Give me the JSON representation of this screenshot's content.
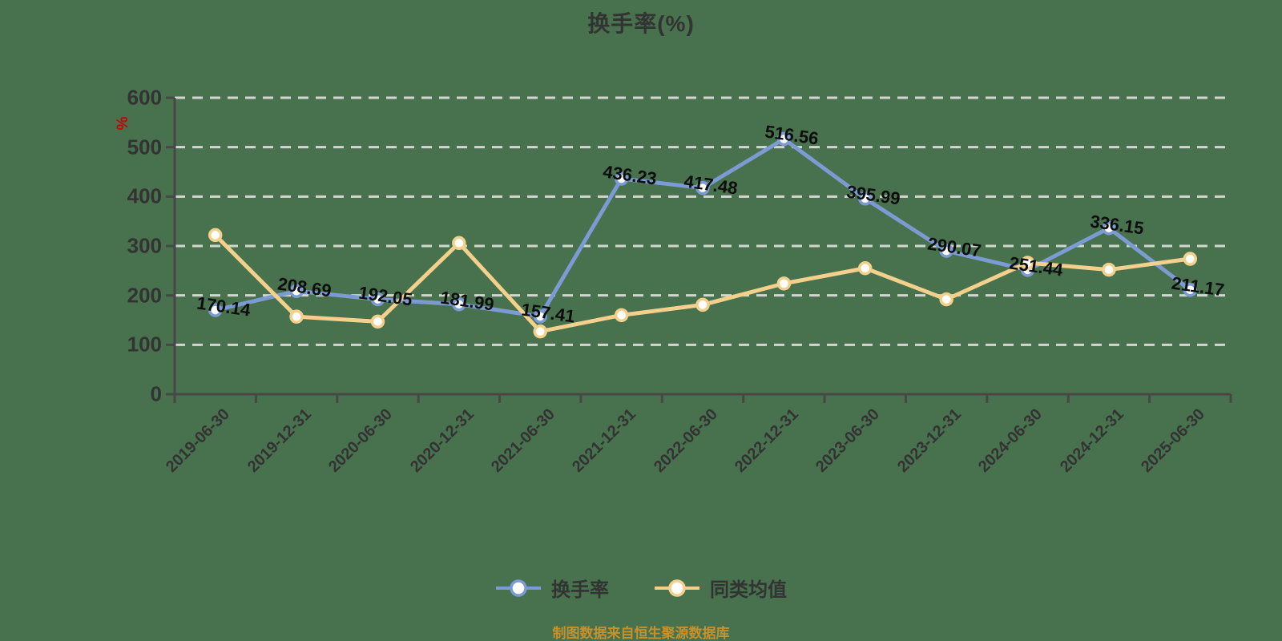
{
  "title": "换手率(%)",
  "y_unit_label": "%",
  "caption": "制图数据来自恒生聚源数据库",
  "colors": {
    "background": "#48714e",
    "grid": "#d3d5d1",
    "axis": "#474747",
    "axis_label": "#333333",
    "value_label": "#0d0d0d",
    "legend_text": "#333333",
    "caption_text": "#c6922c",
    "y_unit": "#cc0000",
    "marker_fill": "#ffffff",
    "series_blue": "#7b9bd2",
    "series_yellow": "#f3d08b"
  },
  "legend": {
    "items": [
      {
        "label": "换手率",
        "color": "#7b9bd2"
      },
      {
        "label": "同类均值",
        "color": "#f3d08b"
      }
    ]
  },
  "chart_data": {
    "type": "line",
    "title": "换手率(%)",
    "categories": [
      "2019-06-30",
      "2019-12-31",
      "2020-06-30",
      "2020-12-31",
      "2021-06-30",
      "2021-12-31",
      "2022-06-30",
      "2022-12-31",
      "2023-06-30",
      "2023-12-31",
      "2024-06-30",
      "2024-12-31",
      "2025-06-30"
    ],
    "series": [
      {
        "name": "换手率",
        "color": "#7b9bd2",
        "values": [
          170.14,
          208.69,
          192.05,
          181.99,
          157.41,
          436.23,
          417.48,
          516.56,
          395.99,
          290.07,
          251.44,
          336.15,
          211.17
        ],
        "point_labels_shown": true
      },
      {
        "name": "同类均值",
        "color": "#f3d08b",
        "values": [
          322,
          157,
          147,
          306,
          127,
          160,
          181,
          224,
          255,
          192,
          266,
          252,
          274
        ],
        "point_labels_shown": false
      }
    ],
    "xlabel": "",
    "ylabel": "%",
    "ylim": [
      0,
      600
    ],
    "y_ticks": [
      0,
      100,
      200,
      300,
      400,
      500,
      600
    ],
    "grid": "horizontal-dashed",
    "legend_position": "bottom",
    "x_label_rotation_deg": 45
  }
}
